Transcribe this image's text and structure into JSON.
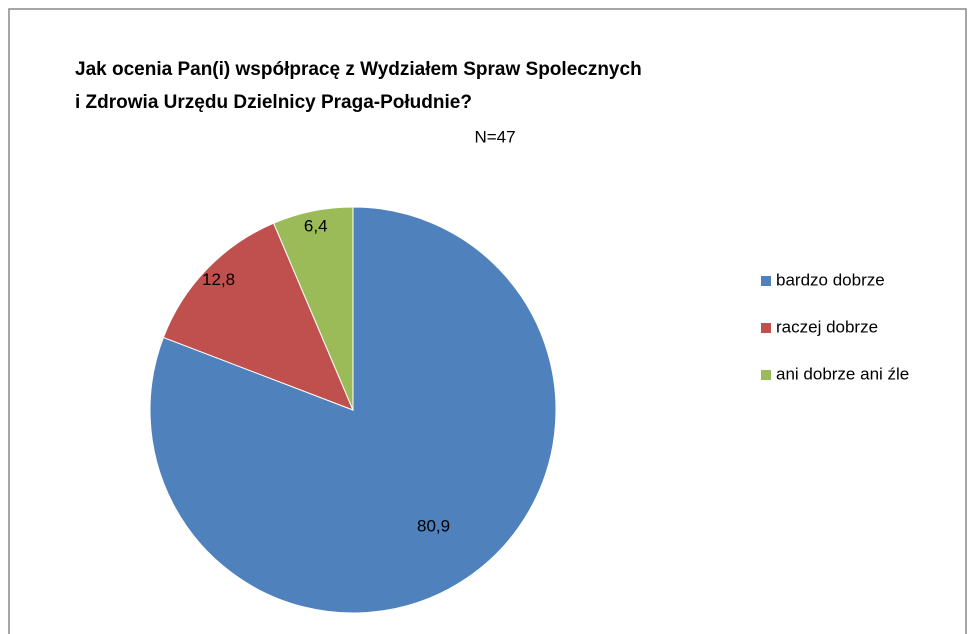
{
  "chart_data": {
    "type": "pie",
    "title": [
      "Jak ocenia Pan(i) współpracę z Wydziałem Spraw Spolecznych",
      "i Zdrowia Urzędu Dzielnicy Praga-Południe?"
    ],
    "subtitle": "N=47",
    "categories": [
      "bardzo dobrze",
      "raczej dobrze",
      "ani dobrze ani źle"
    ],
    "values": [
      80.9,
      12.8,
      6.4
    ],
    "value_labels": [
      "80,9",
      "12,8",
      "6,4"
    ],
    "colors": [
      "#4f81bd",
      "#c0504d",
      "#9bbb59"
    ],
    "legend": "right"
  }
}
